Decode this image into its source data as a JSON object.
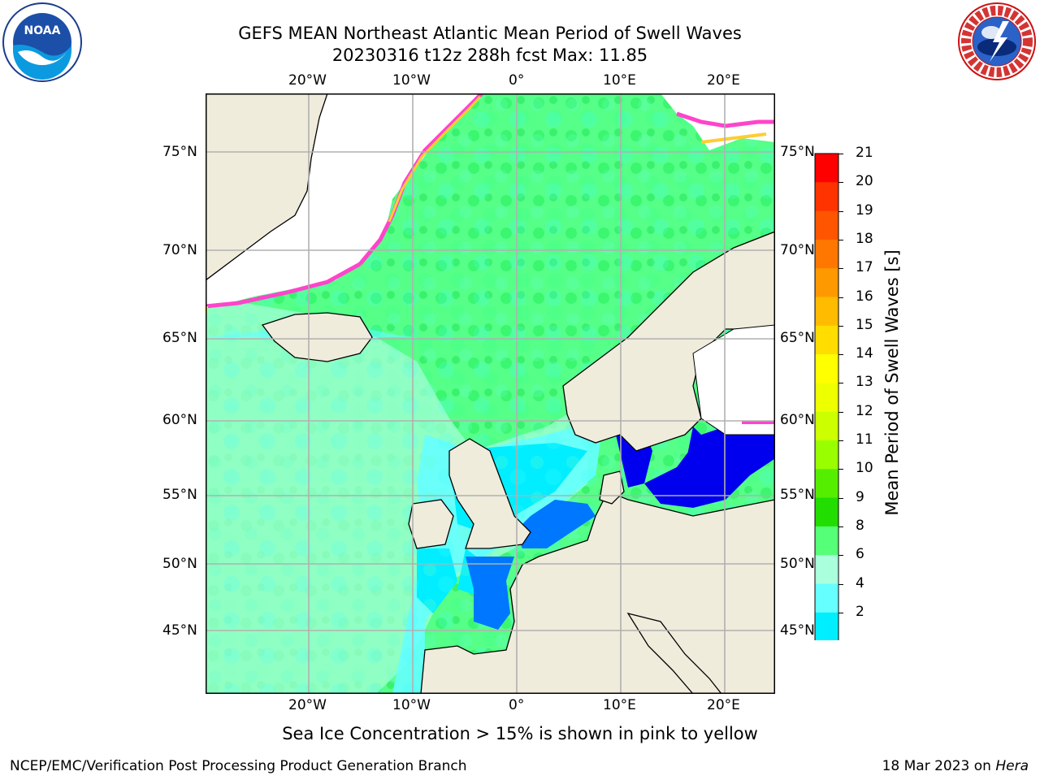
{
  "title": {
    "line1": "GEFS MEAN Northeast Atlantic Mean Period of Swell Waves",
    "line2": "20230316 t12z 288h fcst   Max: 11.85"
  },
  "logos": {
    "left": {
      "text": "NOAA",
      "icon": "noaa-logo-icon"
    },
    "right": {
      "text": "NATIONAL WEATHER SERVICE",
      "icon": "nws-logo-icon"
    }
  },
  "map": {
    "lon_labels": [
      "20°W",
      "10°W",
      "0°",
      "10°E",
      "20°E"
    ],
    "lat_labels": [
      "75°N",
      "70°N",
      "65°N",
      "60°N",
      "55°N",
      "50°N",
      "45°N"
    ],
    "colors": {
      "land": "#efecdc",
      "ice_free_white": "#ffffff",
      "grid": "#b0b0b0"
    }
  },
  "colorbar": {
    "label": "Mean Period of Swell Waves [s]",
    "ticks": [
      "21",
      "20",
      "19",
      "18",
      "17",
      "16",
      "15",
      "14",
      "13",
      "12",
      "11",
      "10",
      "9",
      "8",
      "6",
      "4",
      "2"
    ],
    "colors": [
      "#ff0000",
      "#ff3300",
      "#ff5500",
      "#ff7700",
      "#ff9900",
      "#ffbb00",
      "#ffdd00",
      "#ffff00",
      "#eeff00",
      "#ccff00",
      "#99ff00",
      "#55ee00",
      "#22dd00",
      "#55ff77",
      "#aaffdd",
      "#66ffff",
      "#00eeff",
      "#0077ff",
      "#0000ee"
    ]
  },
  "note": "Sea Ice Concentration > 15% is shown in pink to yellow",
  "footer": {
    "left": "NCEP/EMC/Verification Post Processing Product Generation Branch",
    "right_prefix": "18 Mar 2023 on ",
    "right_machine": "Hera"
  }
}
